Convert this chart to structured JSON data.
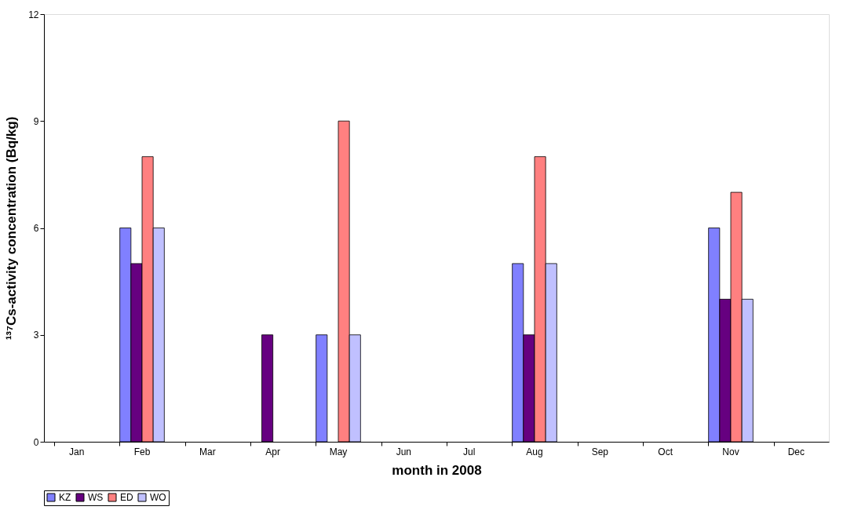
{
  "chart_data": {
    "type": "bar",
    "xlabel": "month in 2008",
    "ylabel": "¹³⁷Cs-activity concentration (Bq/kg)",
    "categories": [
      "Jan",
      "Feb",
      "Mar",
      "Apr",
      "May",
      "Jun",
      "Jul",
      "Aug",
      "Sep",
      "Oct",
      "Nov",
      "Dec"
    ],
    "series": [
      {
        "name": "KZ",
        "color": "#8080ff",
        "values": [
          null,
          6,
          null,
          null,
          3,
          null,
          null,
          5,
          null,
          null,
          6,
          null
        ]
      },
      {
        "name": "WS",
        "color": "#660080",
        "values": [
          null,
          5,
          null,
          3,
          null,
          null,
          null,
          3,
          null,
          null,
          4,
          null
        ]
      },
      {
        "name": "ED",
        "color": "#ff8080",
        "values": [
          null,
          8,
          null,
          null,
          9,
          null,
          null,
          8,
          null,
          null,
          7,
          null
        ]
      },
      {
        "name": "WO",
        "color": "#c0c0ff",
        "values": [
          null,
          6,
          null,
          null,
          3,
          null,
          null,
          5,
          null,
          null,
          4,
          null
        ]
      }
    ],
    "ylim": [
      0,
      12
    ],
    "yticks": [
      0,
      3,
      6,
      9,
      12
    ],
    "grid": false,
    "legend": "bottom"
  }
}
